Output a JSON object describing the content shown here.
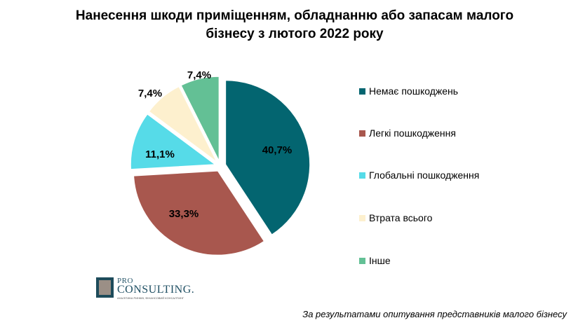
{
  "title_lines": [
    "Нанесення шкоди приміщенням, обладнанню або запасам малого",
    "бізнесу з лютого 2022 року"
  ],
  "chart_data": {
    "type": "pie",
    "title": "Нанесення шкоди приміщенням, обладнанню або запасам малого бізнесу з лютого 2022 року",
    "categories": [
      "Немає пошкоджень",
      "Легкі пошкодження",
      "Глобальні пошкодження",
      "Втрата всього",
      "Інше"
    ],
    "values": [
      40.7,
      33.3,
      11.1,
      7.4,
      7.4
    ],
    "value_labels": [
      "40,7%",
      "33,3%",
      "11,1%",
      "7,4%",
      "7,4%"
    ],
    "colors": [
      "#036570",
      "#a8574e",
      "#56dbe8",
      "#fdf0ce",
      "#63c095"
    ],
    "legend_position": "right",
    "exploded": true
  },
  "logo": {
    "line1": "PRO",
    "line2": "CONSULTING.",
    "tagline": "АНАЛІТИКА РИНКІВ, ФІНАНСОВИЙ КОНСАЛТИНГ"
  },
  "footnote": "За результатами опитування представників малого бізнесу"
}
